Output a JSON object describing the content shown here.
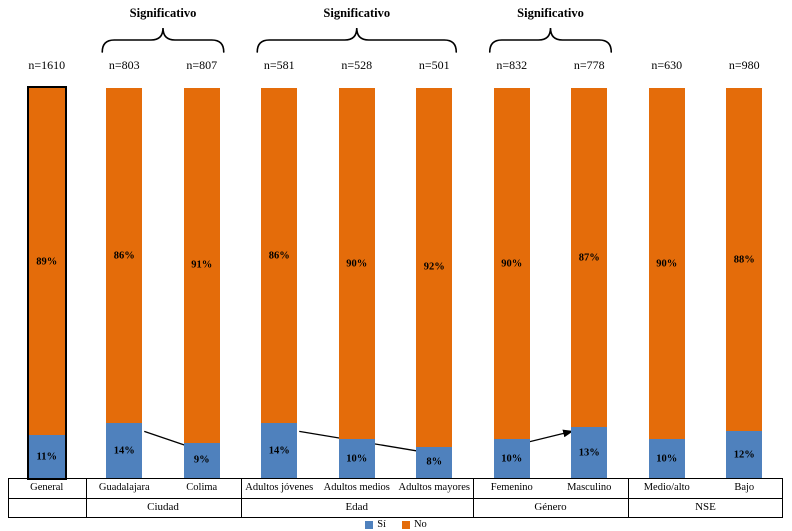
{
  "chart_data": {
    "type": "bar",
    "stacked": true,
    "categories": [
      "General",
      "Guadalajara",
      "Colima",
      "Adultos jóvenes",
      "Adultos medios",
      "Adultos mayores",
      "Femenino",
      "Masculino",
      "Medio/alto",
      "Bajo"
    ],
    "n_labels": [
      "n=1610",
      "n=803",
      "n=807",
      "n=581",
      "n=528",
      "n=501",
      "n=832",
      "n=778",
      "n=630",
      "n=980"
    ],
    "series": [
      {
        "name": "Sí",
        "color": "#4f81bd",
        "values": [
          11,
          14,
          9,
          14,
          10,
          8,
          10,
          13,
          10,
          12
        ]
      },
      {
        "name": "No",
        "color": "#e46c0a",
        "values": [
          89,
          86,
          91,
          86,
          90,
          92,
          90,
          87,
          90,
          88
        ]
      }
    ],
    "groups": [
      {
        "label": "",
        "bars": [
          0
        ],
        "significant": false
      },
      {
        "label": "Ciudad",
        "bars": [
          1,
          2
        ],
        "significant": true
      },
      {
        "label": "Edad",
        "bars": [
          3,
          4,
          5
        ],
        "significant": true
      },
      {
        "label": "Género",
        "bars": [
          6,
          7
        ],
        "significant": true
      },
      {
        "label": "NSE",
        "bars": [
          8,
          9
        ],
        "significant": false
      }
    ],
    "significance_label": "Significativo",
    "arrows": [
      {
        "from_bar": 1,
        "to_bar": 2
      },
      {
        "from_bar": 3,
        "to_bar": 5
      },
      {
        "from_bar": 6,
        "to_bar": 7
      }
    ],
    "highlighted_bar": 0,
    "ylim": [
      0,
      100
    ],
    "legend_position": "bottom",
    "unit": "%"
  }
}
